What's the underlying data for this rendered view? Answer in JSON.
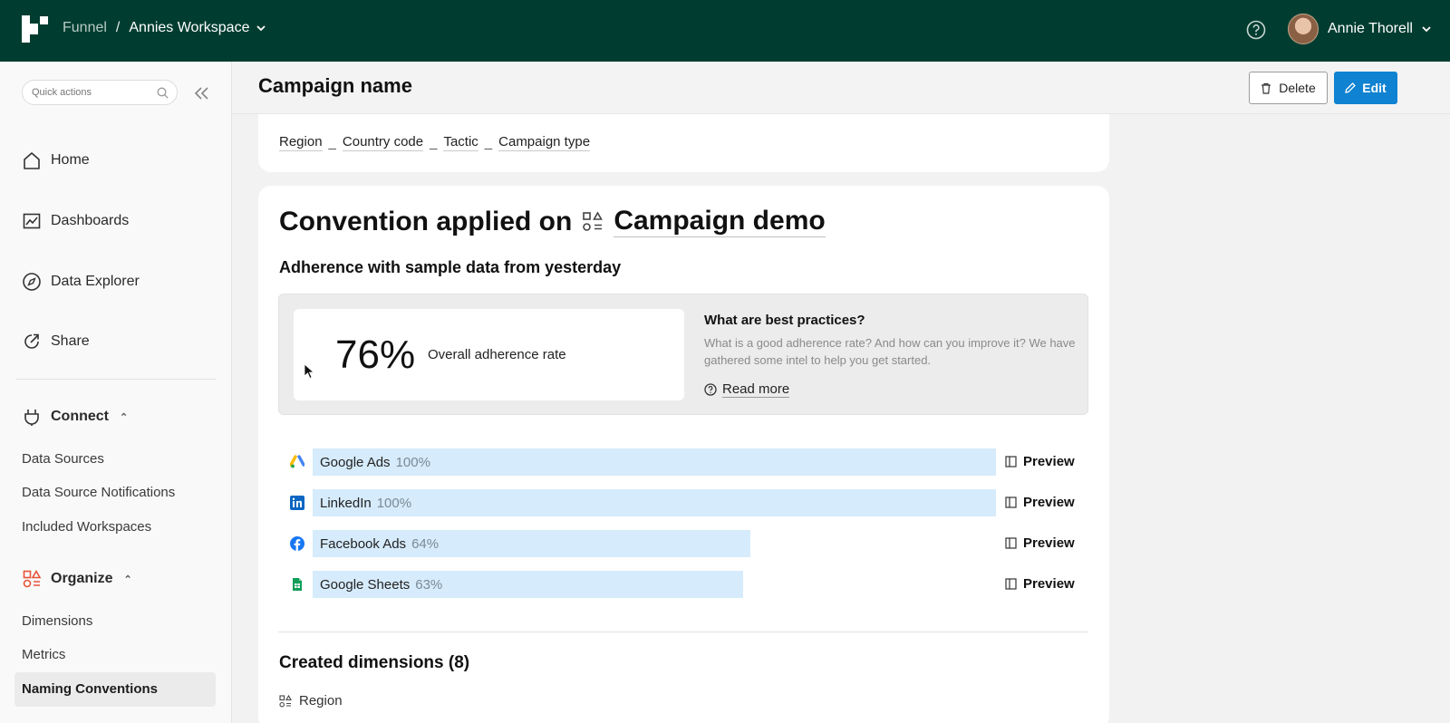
{
  "topbar": {
    "breadcrumb_app": "Funnel",
    "breadcrumb_sep": "/",
    "workspace": "Annies Workspace",
    "user_name": "Annie Thorell"
  },
  "sidebar": {
    "quick_actions_placeholder": "Quick actions",
    "nav": [
      {
        "label": "Home",
        "icon": "home-icon"
      },
      {
        "label": "Dashboards",
        "icon": "chart-icon"
      },
      {
        "label": "Data Explorer",
        "icon": "compass-icon"
      },
      {
        "label": "Share",
        "icon": "share-icon"
      }
    ],
    "connect": {
      "label": "Connect",
      "items": [
        "Data Sources",
        "Data Source Notifications",
        "Included Workspaces"
      ]
    },
    "organize": {
      "label": "Organize",
      "accent": "#e8533a",
      "items": [
        "Dimensions",
        "Metrics",
        "Naming Conventions"
      ],
      "active": "Naming Conventions"
    }
  },
  "header": {
    "title": "Campaign name",
    "delete_label": "Delete",
    "edit_label": "Edit",
    "edit_color": "#0f82d1"
  },
  "pattern": {
    "tokens": [
      "Region",
      "Country code",
      "Tactic",
      "Campaign type"
    ],
    "separator": "_"
  },
  "convention": {
    "title_prefix": "Convention applied on",
    "target": "Campaign demo",
    "adherence_title": "Adherence with sample data from yesterday",
    "overall_rate": "76%",
    "overall_label": "Overall adherence rate",
    "best_practices_title": "What are best practices?",
    "best_practices_text": "What is a good adherence rate? And how can you improve it? We have gathered some intel to help you get started.",
    "read_more": "Read more"
  },
  "sources": [
    {
      "name": "Google Ads",
      "pct_label": "100%",
      "value": 100,
      "icon": "google-ads-icon"
    },
    {
      "name": "LinkedIn",
      "pct_label": "100%",
      "value": 100,
      "icon": "linkedin-icon"
    },
    {
      "name": "Facebook Ads",
      "pct_label": "64%",
      "value": 64,
      "icon": "facebook-icon"
    },
    {
      "name": "Google Sheets",
      "pct_label": "63%",
      "value": 63,
      "icon": "google-sheets-icon"
    }
  ],
  "preview_label": "Preview",
  "bar_color": "#d6ebfb",
  "created": {
    "title": "Created dimensions (8)",
    "first_item": "Region"
  }
}
